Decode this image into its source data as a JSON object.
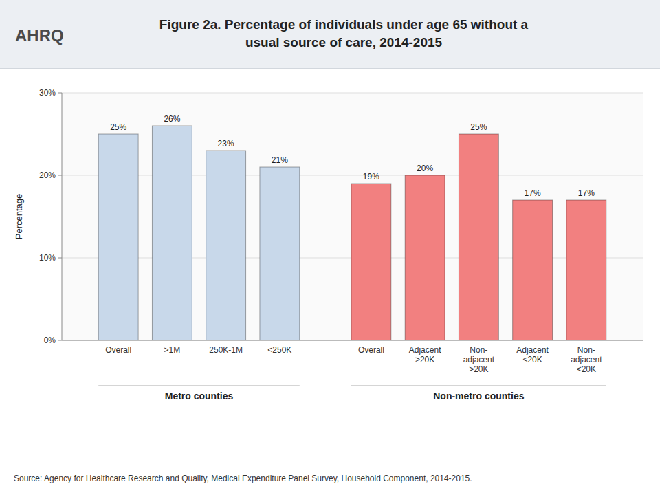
{
  "chart_data": {
    "type": "bar",
    "title": "Figure 2a. Percentage of individuals under age 65 without a\nusual source of care, 2014-2015",
    "ylabel": "Percentage",
    "source": "Source: Agency for Healthcare Research and Quality, Medical Expenditure Panel Survey, Household Component, 2014-2015.",
    "logo": "AHRQ",
    "categories": [
      "Overall",
      ">1M",
      "250K-1M",
      "<250K",
      "Overall",
      "Adjacent\n>20K",
      "Non-\nadjacent\n>20K",
      "Adjacent\n<20K",
      "Non-\nadjacent\n<20K"
    ],
    "values": [
      25,
      26,
      23,
      21,
      19,
      20,
      25,
      17,
      17
    ],
    "value_labels": [
      "25%",
      "26%",
      "23%",
      "21%",
      "19%",
      "20%",
      "25%",
      "17%",
      "17%"
    ],
    "data_labels": true,
    "colors": [
      "#c8d8ea",
      "#c8d8ea",
      "#c8d8ea",
      "#c8d8ea",
      "#f28080",
      "#f28080",
      "#f28080",
      "#f28080",
      "#f28080"
    ],
    "annotations": [
      "Metro counties",
      "Non-metro counties"
    ],
    "ylim": [
      0,
      30
    ],
    "yticks": [
      {
        "value": 0,
        "label": "0%"
      },
      {
        "value": 10,
        "label": "10%"
      },
      {
        "value": 20,
        "label": "20%"
      },
      {
        "value": 30,
        "label": "30%"
      }
    ],
    "grid": true
  }
}
